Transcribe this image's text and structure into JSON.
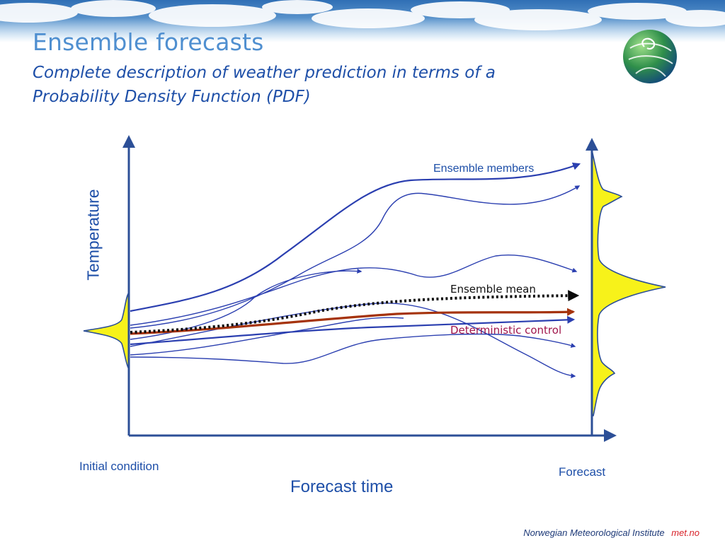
{
  "slide": {
    "title": "Ensemble forecasts",
    "subtitle": "Complete description of weather prediction in terms of a Probability Density Function (PDF)"
  },
  "diagram": {
    "y_axis_label": "Temperature",
    "x_axis_label": "Forecast time",
    "initial_label": "Initial condition",
    "forecast_label": "Forecast",
    "members_label": "Ensemble members",
    "mean_label": "Ensemble mean",
    "control_label": "Deterministic control"
  },
  "footer": {
    "institute": "Norwegian Meteorological Institute",
    "site": "met.no"
  },
  "colors": {
    "member_line": "#2b3fb0",
    "mean_line": "#0a0a0a",
    "control_line": "#a5330d",
    "pdf_fill": "#f7f21a",
    "axis": "#2c4f97",
    "control_text": "#a0154b"
  },
  "icons": [
    "globe-logo-icon",
    "cloud-sky-banner"
  ]
}
